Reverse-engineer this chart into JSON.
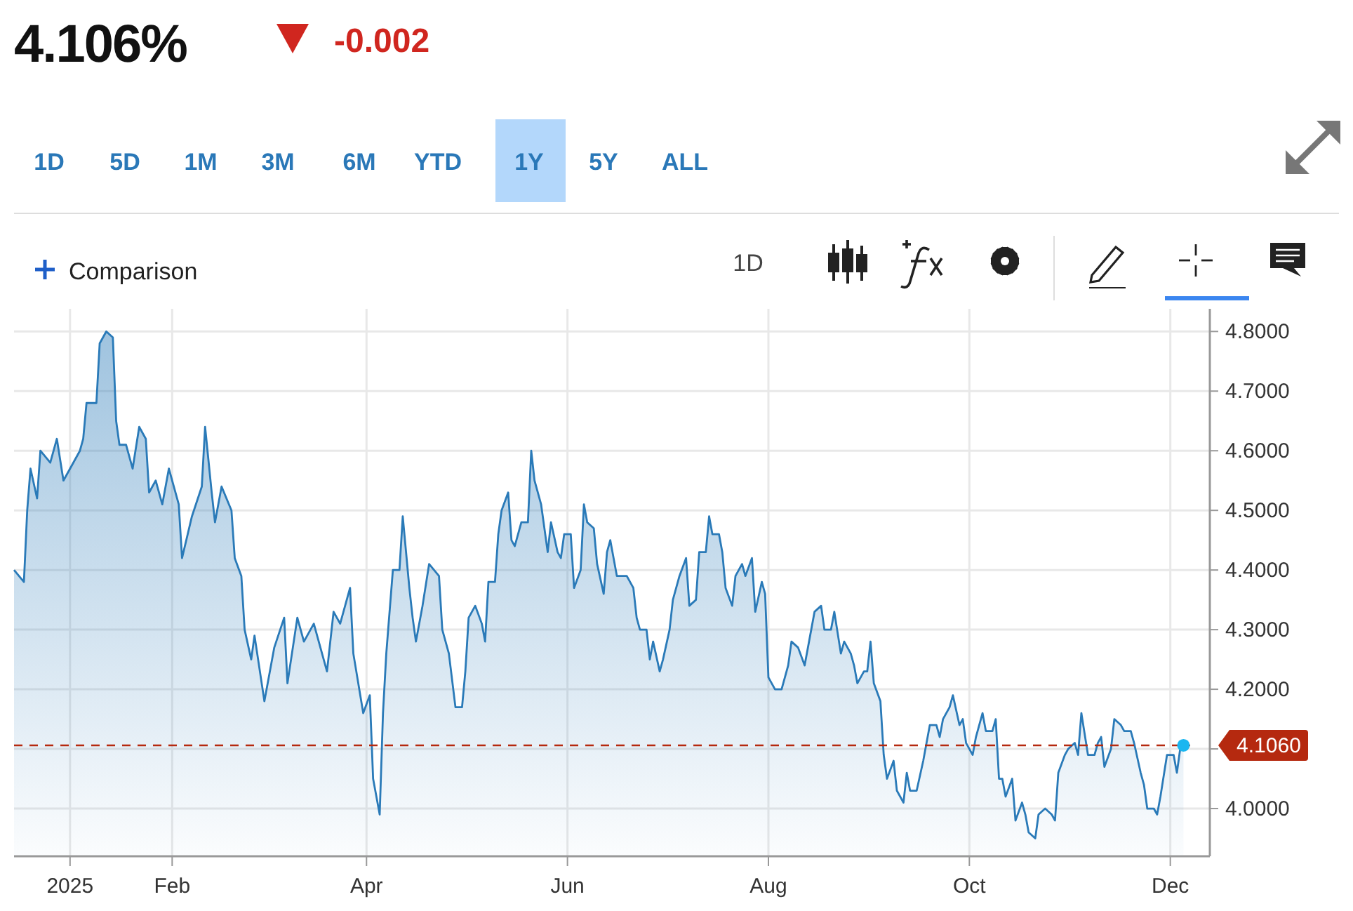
{
  "chart_data": {
    "type": "area",
    "title": "4.106%",
    "subtitle": "-0.002",
    "annotations": [
      "1D",
      "5D",
      "1M",
      "3M",
      "6M",
      "YTD",
      "1Y",
      "5Y",
      "ALL",
      "Comparison",
      "1D"
    ],
    "x": [
      "2024-12-15",
      "2024-12-18",
      "2024-12-19",
      "2024-12-20",
      "2024-12-22",
      "2024-12-23",
      "2024-12-26",
      "2024-12-28",
      "2024-12-30",
      "2025-01-01",
      "2025-01-04",
      "2025-01-05",
      "2025-01-06",
      "2025-01-09",
      "2025-01-10",
      "2025-01-12",
      "2025-01-14",
      "2025-01-15",
      "2025-01-16",
      "2025-01-18",
      "2025-01-20",
      "2025-01-22",
      "2025-01-24",
      "2025-01-25",
      "2025-01-27",
      "2025-01-29",
      "2025-01-31",
      "2025-02-03",
      "2025-02-04",
      "2025-02-07",
      "2025-02-10",
      "2025-02-11",
      "2025-02-13",
      "2025-02-14",
      "2025-02-16",
      "2025-02-19",
      "2025-02-20",
      "2025-02-22",
      "2025-02-23",
      "2025-02-25",
      "2025-02-26",
      "2025-03-01",
      "2025-03-04",
      "2025-03-07",
      "2025-03-08",
      "2025-03-11",
      "2025-03-13",
      "2025-03-16",
      "2025-03-20",
      "2025-03-22",
      "2025-03-24",
      "2025-03-27",
      "2025-03-28",
      "2025-03-31",
      "2025-04-02",
      "2025-04-03",
      "2025-04-05",
      "2025-04-06",
      "2025-04-07",
      "2025-04-09",
      "2025-04-11",
      "2025-04-12",
      "2025-04-14",
      "2025-04-15",
      "2025-04-16",
      "2025-04-18",
      "2025-04-20",
      "2025-04-23",
      "2025-04-24",
      "2025-04-26",
      "2025-04-28",
      "2025-04-30",
      "2025-05-01",
      "2025-05-02",
      "2025-05-04",
      "2025-05-06",
      "2025-05-07",
      "2025-05-08",
      "2025-05-10",
      "2025-05-11",
      "2025-05-12",
      "2025-05-14",
      "2025-05-15",
      "2025-05-16",
      "2025-05-18",
      "2025-05-20",
      "2025-05-21",
      "2025-05-22",
      "2025-05-24",
      "2025-05-26",
      "2025-05-27",
      "2025-05-29",
      "2025-05-30",
      "2025-05-31",
      "2025-06-02",
      "2025-06-03",
      "2025-06-05",
      "2025-06-06",
      "2025-06-07",
      "2025-06-09",
      "2025-06-10",
      "2025-06-12",
      "2025-06-13",
      "2025-06-14",
      "2025-06-16",
      "2025-06-19",
      "2025-06-21",
      "2025-06-22",
      "2025-06-23",
      "2025-06-25",
      "2025-06-26",
      "2025-06-27",
      "2025-06-29",
      "2025-06-30",
      "2025-07-02",
      "2025-07-03",
      "2025-07-05",
      "2025-07-07",
      "2025-07-08",
      "2025-07-10",
      "2025-07-11",
      "2025-07-13",
      "2025-07-14",
      "2025-07-15",
      "2025-07-17",
      "2025-07-18",
      "2025-07-19",
      "2025-07-21",
      "2025-07-22",
      "2025-07-24",
      "2025-07-25",
      "2025-07-27",
      "2025-07-28",
      "2025-07-30",
      "2025-07-31",
      "2025-08-01",
      "2025-08-03",
      "2025-08-05",
      "2025-08-06",
      "2025-08-07",
      "2025-08-08",
      "2025-08-10",
      "2025-08-12",
      "2025-08-14",
      "2025-08-15",
      "2025-08-17",
      "2025-08-18",
      "2025-08-20",
      "2025-08-21",
      "2025-08-23",
      "2025-08-24",
      "2025-08-26",
      "2025-08-27",
      "2025-08-28",
      "2025-08-30",
      "2025-08-31",
      "2025-09-01",
      "2025-09-02",
      "2025-09-04",
      "2025-09-05",
      "2025-09-06",
      "2025-09-08",
      "2025-09-09",
      "2025-09-11",
      "2025-09-12",
      "2025-09-13",
      "2025-09-15",
      "2025-09-17",
      "2025-09-18",
      "2025-09-19",
      "2025-09-21",
      "2025-09-22",
      "2025-09-23",
      "2025-09-25",
      "2025-09-26",
      "2025-09-28",
      "2025-09-29",
      "2025-09-30",
      "2025-10-02",
      "2025-10-03",
      "2025-10-05",
      "2025-10-06",
      "2025-10-08",
      "2025-10-09",
      "2025-10-10",
      "2025-10-11",
      "2025-10-12",
      "2025-10-14",
      "2025-10-15",
      "2025-10-17",
      "2025-10-18",
      "2025-10-19",
      "2025-10-21",
      "2025-10-22",
      "2025-10-24",
      "2025-10-26",
      "2025-10-27",
      "2025-10-28",
      "2025-10-30",
      "2025-10-31",
      "2025-11-02",
      "2025-11-03",
      "2025-11-04",
      "2025-11-06",
      "2025-11-08",
      "2025-11-09",
      "2025-11-10",
      "2025-11-11",
      "2025-11-13",
      "2025-11-14",
      "2025-11-16",
      "2025-11-17",
      "2025-11-19",
      "2025-11-20",
      "2025-11-22",
      "2025-11-23",
      "2025-11-24",
      "2025-11-26",
      "2025-11-27",
      "2025-11-28",
      "2025-11-30",
      "2025-12-02",
      "2025-12-03",
      "2025-12-04",
      "2025-12-05"
    ],
    "series": [
      {
        "color": "#2a7ab8",
        "values": [
          4.4,
          4.38,
          4.5,
          4.57,
          4.52,
          4.6,
          4.58,
          4.62,
          4.55,
          4.57,
          4.6,
          4.62,
          4.68,
          4.68,
          4.78,
          4.8,
          4.79,
          4.65,
          4.61,
          4.61,
          4.57,
          4.64,
          4.62,
          4.53,
          4.55,
          4.51,
          4.57,
          4.51,
          4.42,
          4.49,
          4.54,
          4.64,
          4.53,
          4.48,
          4.54,
          4.5,
          4.42,
          4.39,
          4.3,
          4.25,
          4.29,
          4.18,
          4.27,
          4.32,
          4.21,
          4.32,
          4.28,
          4.31,
          4.23,
          4.33,
          4.31,
          4.37,
          4.26,
          4.16,
          4.19,
          4.05,
          3.99,
          4.16,
          4.26,
          4.4,
          4.4,
          4.49,
          4.37,
          4.32,
          4.28,
          4.34,
          4.41,
          4.39,
          4.3,
          4.26,
          4.17,
          4.17,
          4.23,
          4.32,
          4.34,
          4.31,
          4.28,
          4.38,
          4.38,
          4.46,
          4.5,
          4.53,
          4.45,
          4.44,
          4.48,
          4.48,
          4.6,
          4.55,
          4.51,
          4.43,
          4.48,
          4.43,
          4.42,
          4.46,
          4.46,
          4.37,
          4.4,
          4.51,
          4.48,
          4.47,
          4.41,
          4.36,
          4.43,
          4.45,
          4.39,
          4.39,
          4.37,
          4.32,
          4.3,
          4.3,
          4.25,
          4.28,
          4.23,
          4.25,
          4.3,
          4.35,
          4.39,
          4.42,
          4.34,
          4.35,
          4.43,
          4.43,
          4.49,
          4.46,
          4.46,
          4.43,
          4.37,
          4.34,
          4.39,
          4.41,
          4.39,
          4.42,
          4.33,
          4.38,
          4.36,
          4.22,
          4.2,
          4.2,
          4.22,
          4.24,
          4.28,
          4.27,
          4.24,
          4.3,
          4.33,
          4.34,
          4.3,
          4.3,
          4.33,
          4.26,
          4.28,
          4.26,
          4.24,
          4.21,
          4.23,
          4.23,
          4.28,
          4.21,
          4.18,
          4.09,
          4.05,
          4.08,
          4.03,
          4.01,
          4.06,
          4.03,
          4.03,
          4.08,
          4.11,
          4.14,
          4.14,
          4.12,
          4.15,
          4.17,
          4.19,
          4.14,
          4.15,
          4.11,
          4.09,
          4.12,
          4.16,
          4.13,
          4.13,
          4.15,
          4.05,
          4.05,
          4.02,
          4.05,
          3.98,
          4.01,
          3.99,
          3.96,
          3.95,
          3.99,
          4.0,
          3.99,
          3.98,
          4.06,
          4.09,
          4.1,
          4.11,
          4.09,
          4.16,
          4.09,
          4.09,
          4.11,
          4.12,
          4.07,
          4.1,
          4.15,
          4.14,
          4.13,
          4.13,
          4.11,
          4.06,
          4.04,
          4.0,
          4.0,
          3.99,
          4.02,
          4.09,
          4.09,
          4.06,
          4.1,
          4.106
        ]
      }
    ],
    "xlim": [
      "2024-12-15",
      "2025-12-13"
    ],
    "ylim": [
      3.92,
      4.838
    ],
    "xticks": [
      {
        "value": "2025-01-01",
        "label": "2025"
      },
      {
        "value": "2025-02-01",
        "label": "Feb"
      },
      {
        "value": "2025-04-01",
        "label": "Apr"
      },
      {
        "value": "2025-06-01",
        "label": "Jun"
      },
      {
        "value": "2025-08-01",
        "label": "Aug"
      },
      {
        "value": "2025-10-01",
        "label": "Oct"
      },
      {
        "value": "2025-12-01",
        "label": "Dec"
      }
    ],
    "yticks": [
      {
        "value": 4.0,
        "label": "4.0000"
      },
      {
        "value": 4.1,
        "label": null
      },
      {
        "value": 4.2,
        "label": "4.2000"
      },
      {
        "value": 4.3,
        "label": "4.3000"
      },
      {
        "value": 4.4,
        "label": "4.4000"
      },
      {
        "value": 4.5,
        "label": "4.5000"
      },
      {
        "value": 4.6,
        "label": "4.6000"
      },
      {
        "value": 4.7,
        "label": "4.7000"
      },
      {
        "value": 4.8,
        "label": "4.8000"
      }
    ],
    "ref_lines": [
      {
        "axis": "y",
        "value": 4.106,
        "label": "4.1060",
        "color": "#b5290f",
        "line_style": "dashed"
      }
    ],
    "grid": true
  }
}
